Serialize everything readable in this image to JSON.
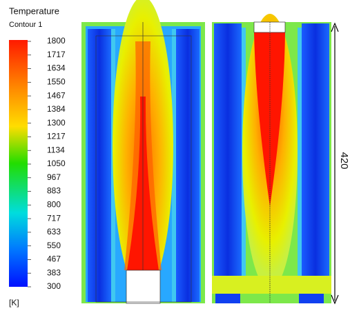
{
  "legend": {
    "title": "Temperature",
    "subtitle": "Contour 1",
    "ticks": [
      "1800",
      "1717",
      "1634",
      "1550",
      "1467",
      "1384",
      "1300",
      "1217",
      "1134",
      "1050",
      "967",
      "883",
      "800",
      "717",
      "633",
      "550",
      "467",
      "383",
      "300"
    ],
    "unit": "[K]"
  },
  "dimension": {
    "label": "420"
  }
}
